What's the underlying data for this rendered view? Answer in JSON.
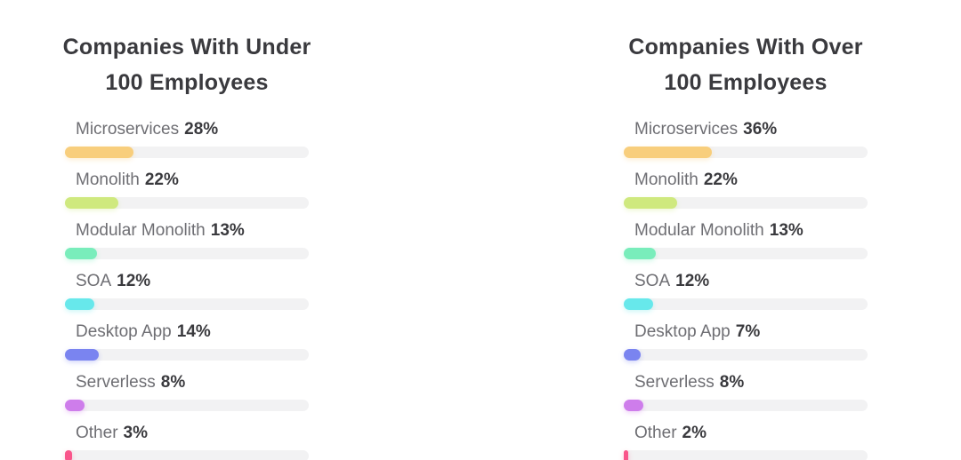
{
  "page": {
    "background": "#ffffff"
  },
  "colors": {
    "title_text": "#3A3A3E",
    "category_text": "#6E6E73",
    "value_text": "#3A3A3E",
    "bar_track": "#F2F2F3"
  },
  "chart_data": [
    {
      "type": "bar",
      "orientation": "horizontal",
      "title": "Companies With Under 100 Employees",
      "title_lines": [
        "Companies With Under",
        "100 Employees"
      ],
      "categories": [
        "Microservices",
        "Monolith",
        "Modular Monolith",
        "SOA",
        "Desktop App",
        "Serverless",
        "Other"
      ],
      "values": [
        28,
        22,
        13,
        12,
        14,
        8,
        3
      ],
      "value_suffix": "%",
      "xlim": [
        0,
        100
      ],
      "grid": false,
      "legend": false,
      "value_label_position": "inline-after-category",
      "colors": [
        "#F8CE7C",
        "#CFE97E",
        "#79EDBB",
        "#67E8EB",
        "#7A84F0",
        "#CE7DEB",
        "#F9558B"
      ],
      "track_color": "#F2F2F3"
    },
    {
      "type": "bar",
      "orientation": "horizontal",
      "title": "Companies With Over 100 Employees",
      "title_lines": [
        "Companies With Over",
        "100 Employees"
      ],
      "categories": [
        "Microservices",
        "Monolith",
        "Modular Monolith",
        "SOA",
        "Desktop App",
        "Serverless",
        "Other"
      ],
      "values": [
        36,
        22,
        13,
        12,
        7,
        8,
        2
      ],
      "value_suffix": "%",
      "xlim": [
        0,
        100
      ],
      "grid": false,
      "legend": false,
      "value_label_position": "inline-after-category",
      "colors": [
        "#F8CE7C",
        "#CFE97E",
        "#79EDBB",
        "#67E8EB",
        "#7A84F0",
        "#CE7DEB",
        "#F9558B"
      ],
      "track_color": "#F2F2F3"
    }
  ]
}
